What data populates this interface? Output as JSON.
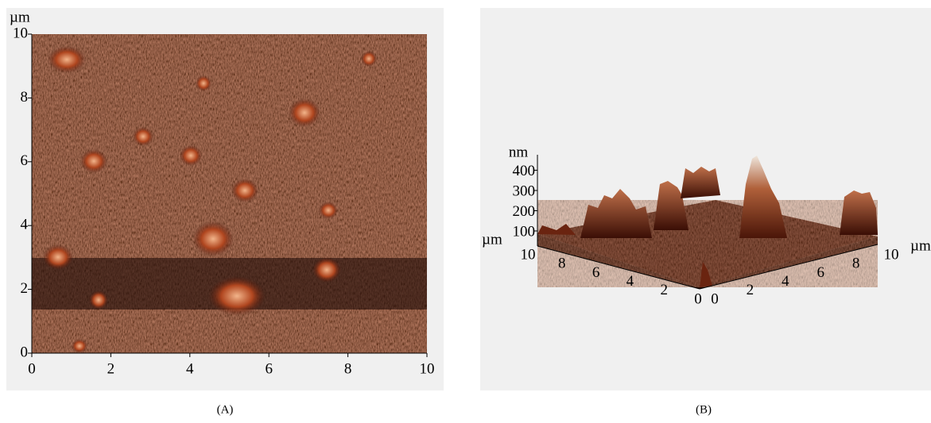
{
  "panels": [
    {
      "caption": "(A)",
      "unit": "µm",
      "x_ticks": [
        0,
        2,
        4,
        6,
        8,
        10
      ],
      "y_ticks": [
        0,
        2,
        4,
        6,
        8,
        10
      ]
    },
    {
      "caption": "(B)",
      "z_unit": "nm",
      "z_ticks": [
        100,
        200,
        300,
        400
      ],
      "left_unit": "µm",
      "right_unit": "µm",
      "left_ticks": [
        10,
        8,
        6,
        4,
        2,
        0
      ],
      "right_ticks": [
        0,
        2,
        4,
        6,
        8,
        10
      ]
    }
  ]
}
